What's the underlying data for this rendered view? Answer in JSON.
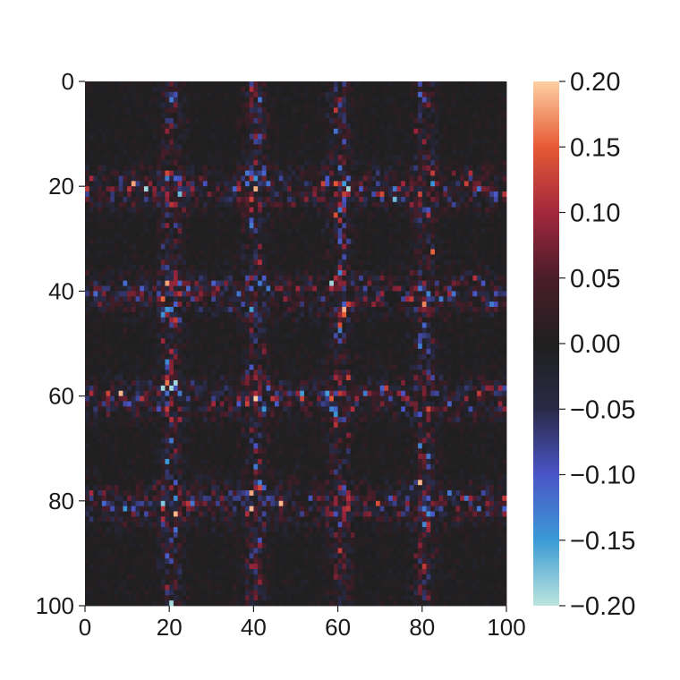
{
  "chart_data": {
    "type": "heatmap",
    "title": "",
    "xlabel": "",
    "ylabel": "",
    "grid_rows": 100,
    "grid_cols": 100,
    "xlim": [
      0,
      100
    ],
    "ylim": [
      0,
      100
    ],
    "y_axis_inverted": true,
    "x_ticks": [
      "0",
      "20",
      "40",
      "60",
      "80",
      "100"
    ],
    "y_ticks": [
      "0",
      "20",
      "40",
      "60",
      "80",
      "100"
    ],
    "colorbar": {
      "vmin": -0.2,
      "vmax": 0.2,
      "ticks": [
        "0.20",
        "0.15",
        "0.10",
        "0.05",
        "0.00",
        "−0.05",
        "−0.10",
        "−0.15",
        "−0.20"
      ],
      "colormap": "icefire",
      "colormap_stops": [
        "#bde6dd",
        "#3b9ad6",
        "#4a55c6",
        "#2a2a47",
        "#1f1f1f",
        "#4a1d2a",
        "#a3273d",
        "#e65a35",
        "#fdd0a2"
      ]
    },
    "structure": {
      "description_of_values": "Near-zero background with bands of stronger positive and negative values",
      "band_positions": [
        20,
        40,
        60,
        80
      ],
      "background_value": 0.0,
      "band_value_range": [
        -0.2,
        0.2
      ],
      "notable_cells": [
        {
          "row": 60,
          "col": 40,
          "value": 0.2
        },
        {
          "row": 38,
          "col": 19,
          "value": 0.18
        },
        {
          "row": 57,
          "col": 19,
          "value": 0.16
        },
        {
          "row": 22,
          "col": 73,
          "value": -0.17
        },
        {
          "row": 72,
          "col": 19,
          "value": -0.15
        },
        {
          "row": 44,
          "col": 61,
          "value": 0.15
        },
        {
          "row": 21,
          "col": 79,
          "value": 0.13
        },
        {
          "row": 79,
          "col": 99,
          "value": 0.12
        }
      ]
    }
  }
}
